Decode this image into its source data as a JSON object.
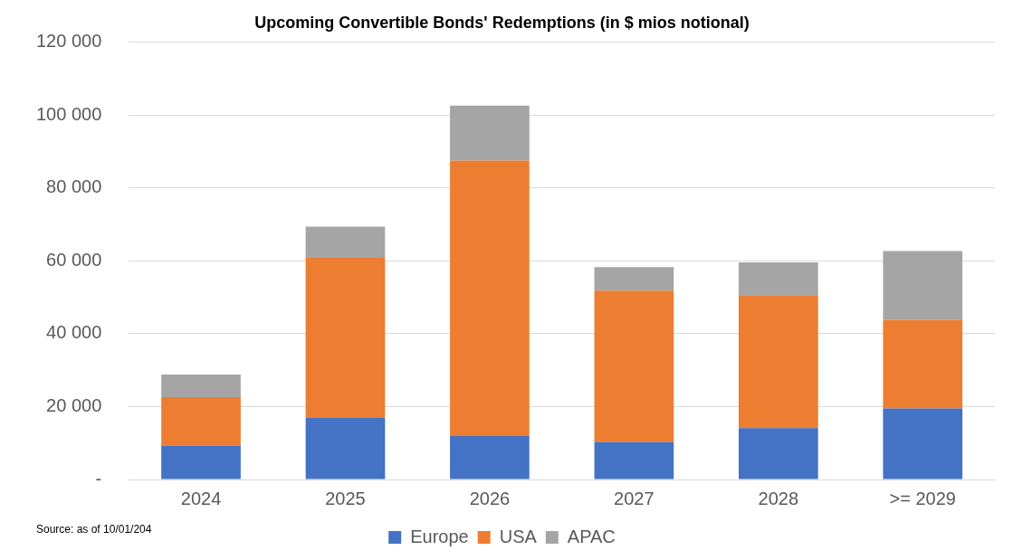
{
  "chart_data": {
    "type": "bar",
    "title": "Upcoming Convertible Bonds' Redemptions (in $ mios notional)",
    "categories": [
      "2024",
      "2025",
      "2026",
      "2027",
      "2028",
      ">= 2029"
    ],
    "stacked": true,
    "series": [
      {
        "name": "Europe",
        "color": "#4472c4",
        "values": [
          9300,
          16900,
          11900,
          10300,
          14100,
          19500
        ]
      },
      {
        "name": "USA",
        "color": "#ed7d31",
        "values": [
          13300,
          43900,
          75600,
          41500,
          36500,
          24300
        ]
      },
      {
        "name": "APAC",
        "color": "#a5a5a5",
        "values": [
          6200,
          8600,
          15100,
          6500,
          9000,
          18900
        ]
      }
    ],
    "ylim": [
      0,
      120000
    ],
    "yticks": [
      {
        "value": 0,
        "label": "-"
      },
      {
        "value": 20000,
        "label": "20 000"
      },
      {
        "value": 40000,
        "label": "40 000"
      },
      {
        "value": 60000,
        "label": "60 000"
      },
      {
        "value": 80000,
        "label": "80 000"
      },
      {
        "value": 100000,
        "label": "100 000"
      },
      {
        "value": 120000,
        "label": "120 000"
      }
    ],
    "grid": "y",
    "legend": "bottom",
    "annotations": [
      "Source: as of 10/01/204"
    ]
  }
}
